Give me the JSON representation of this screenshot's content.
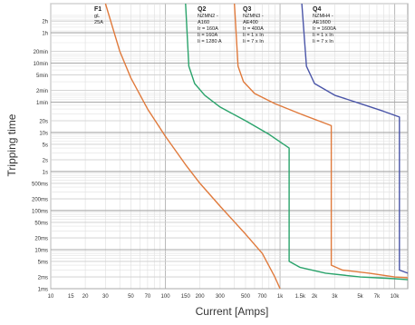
{
  "chart_data": {
    "type": "line",
    "title": "",
    "xlabel": "Current [Amps]",
    "ylabel": "Tripping time",
    "xscale": "log",
    "yscale": "log",
    "xlim": [
      10,
      13000
    ],
    "ylim": [
      0.001,
      20000
    ],
    "grid": true,
    "x_ticks": [
      {
        "value": 10,
        "label": "10"
      },
      {
        "value": 15,
        "label": "15"
      },
      {
        "value": 20,
        "label": "20"
      },
      {
        "value": 30,
        "label": "30"
      },
      {
        "value": 50,
        "label": "50"
      },
      {
        "value": 70,
        "label": "70"
      },
      {
        "value": 100,
        "label": "100"
      },
      {
        "value": 150,
        "label": "150"
      },
      {
        "value": 200,
        "label": "200"
      },
      {
        "value": 300,
        "label": "300"
      },
      {
        "value": 500,
        "label": "500"
      },
      {
        "value": 700,
        "label": "700"
      },
      {
        "value": 1000,
        "label": "1k"
      },
      {
        "value": 1500,
        "label": "1.5k"
      },
      {
        "value": 2000,
        "label": "2k"
      },
      {
        "value": 3000,
        "label": "3k"
      },
      {
        "value": 5000,
        "label": "5k"
      },
      {
        "value": 7000,
        "label": "7k"
      },
      {
        "value": 10000,
        "label": "10k"
      }
    ],
    "y_ticks": [
      {
        "value": 7200,
        "label": "2h"
      },
      {
        "value": 3600,
        "label": "1h"
      },
      {
        "value": 1200,
        "label": "20min"
      },
      {
        "value": 600,
        "label": "10min"
      },
      {
        "value": 300,
        "label": "5min"
      },
      {
        "value": 120,
        "label": "2min"
      },
      {
        "value": 60,
        "label": "1min"
      },
      {
        "value": 20,
        "label": "20s"
      },
      {
        "value": 10,
        "label": "10s"
      },
      {
        "value": 5,
        "label": "5s"
      },
      {
        "value": 2,
        "label": "2s"
      },
      {
        "value": 1,
        "label": "1s"
      },
      {
        "value": 0.5,
        "label": "500ms"
      },
      {
        "value": 0.2,
        "label": "200ms"
      },
      {
        "value": 0.1,
        "label": "100ms"
      },
      {
        "value": 0.05,
        "label": "50ms"
      },
      {
        "value": 0.02,
        "label": "20ms"
      },
      {
        "value": 0.01,
        "label": "10ms"
      },
      {
        "value": 0.005,
        "label": "5ms"
      },
      {
        "value": 0.002,
        "label": "2ms"
      },
      {
        "value": 0.001,
        "label": "1ms"
      }
    ],
    "series": [
      {
        "name": "F1",
        "annotation": [
          "F1",
          "gL",
          "25A"
        ],
        "color": "#e07a3c",
        "points": [
          [
            30,
            20000
          ],
          [
            40,
            1200
          ],
          [
            50,
            250
          ],
          [
            70,
            40
          ],
          [
            100,
            8
          ],
          [
            150,
            1.5
          ],
          [
            200,
            0.5
          ],
          [
            300,
            0.13
          ],
          [
            500,
            0.025
          ],
          [
            700,
            0.008
          ],
          [
            900,
            0.002
          ],
          [
            1000,
            0.001
          ]
        ]
      },
      {
        "name": "Q2",
        "annotation": [
          "Q2",
          "NZMN2 -",
          "A160",
          "Ir = 160A",
          "Ii = 160A",
          "Ii = 1280 A"
        ],
        "color": "#2aa36b",
        "points": [
          [
            150,
            20000
          ],
          [
            160,
            500
          ],
          [
            180,
            180
          ],
          [
            220,
            90
          ],
          [
            300,
            45
          ],
          [
            500,
            20
          ],
          [
            800,
            9
          ],
          [
            1200,
            4
          ],
          [
            1200,
            0.005
          ],
          [
            1500,
            0.0035
          ],
          [
            2500,
            0.0025
          ],
          [
            5000,
            0.002
          ],
          [
            10000,
            0.0018
          ],
          [
            13000,
            0.0017
          ]
        ]
      },
      {
        "name": "Q3",
        "annotation": [
          "Q3",
          "NZMN3 -",
          "AE400",
          "Ir = 400A",
          "Ii = 1 x In",
          "Ii = 7 x In"
        ],
        "color": "#e07a3c",
        "points": [
          [
            400,
            20000
          ],
          [
            430,
            500
          ],
          [
            480,
            200
          ],
          [
            600,
            100
          ],
          [
            900,
            55
          ],
          [
            1500,
            30
          ],
          [
            2800,
            15
          ],
          [
            2800,
            0.004
          ],
          [
            3500,
            0.003
          ],
          [
            6000,
            0.0025
          ],
          [
            10000,
            0.002
          ],
          [
            13000,
            0.0019
          ]
        ]
      },
      {
        "name": "Q4",
        "annotation": [
          "Q4",
          "NZMH4 -",
          "AE1600",
          "Ir = 1600A",
          "Ii = 1 x In",
          "Ii = 7 x In"
        ],
        "color": "#4a55a8",
        "points": [
          [
            1550,
            20000
          ],
          [
            1700,
            500
          ],
          [
            2000,
            180
          ],
          [
            3000,
            90
          ],
          [
            5000,
            55
          ],
          [
            8000,
            35
          ],
          [
            11000,
            25
          ],
          [
            11000,
            0.003
          ],
          [
            13000,
            0.0025
          ]
        ]
      }
    ]
  }
}
